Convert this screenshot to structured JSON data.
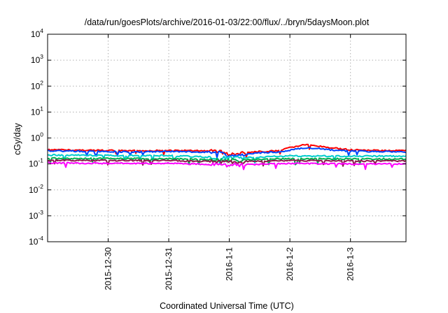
{
  "chart_data": {
    "type": "line",
    "title": "/data/run/goesPlots/archive/2016-01-03/22:00/flux/../bryn/5daysMoon.plot",
    "xlabel": "Coordinated Universal Time (UTC)",
    "ylabel": "cGy/day",
    "yscale": "log",
    "ylim": [
      0.0001,
      10000
    ],
    "y_ticks": [
      {
        "base": "10",
        "exp": "4",
        "value": 10000
      },
      {
        "base": "10",
        "exp": "3",
        "value": 1000
      },
      {
        "base": "10",
        "exp": "2",
        "value": 100
      },
      {
        "base": "10",
        "exp": "1",
        "value": 10
      },
      {
        "base": "10",
        "exp": "0",
        "value": 1
      },
      {
        "base": "10",
        "exp": "-1",
        "value": 0.1
      },
      {
        "base": "10",
        "exp": "-2",
        "value": 0.01
      },
      {
        "base": "10",
        "exp": "-3",
        "value": 0.001
      },
      {
        "base": "10",
        "exp": "-4",
        "value": 0.0001
      }
    ],
    "xlim": [
      "2015-12-29 00:00",
      "2016-01-03 22:00"
    ],
    "x_ticks": [
      {
        "label": "2015-12-30",
        "date": "2015-12-30"
      },
      {
        "label": "2015-12-31",
        "date": "2015-12-31"
      },
      {
        "label": "2016-1-1",
        "date": "2016-01-01"
      },
      {
        "label": "2016-1-2",
        "date": "2016-01-02"
      },
      {
        "label": "2016-1-3",
        "date": "2016-01-03"
      }
    ],
    "grid": true,
    "legend": "none",
    "series": [
      {
        "color": "#ff0000",
        "points": [
          [
            "2015-12-29 00:00",
            0.35
          ],
          [
            "2015-12-29 12:00",
            0.34
          ],
          [
            "2015-12-30 00:00",
            0.33
          ],
          [
            "2015-12-30 12:00",
            0.32
          ],
          [
            "2015-12-31 00:00",
            0.33
          ],
          [
            "2015-12-31 12:00",
            0.32
          ],
          [
            "2015-12-31 20:00",
            0.31
          ],
          [
            "2016-01-01 00:00",
            0.22
          ],
          [
            "2016-01-01 06:00",
            0.26
          ],
          [
            "2016-01-01 12:00",
            0.3
          ],
          [
            "2016-01-01 20:00",
            0.32
          ],
          [
            "2016-01-02 00:00",
            0.42
          ],
          [
            "2016-01-02 06:00",
            0.55
          ],
          [
            "2016-01-02 10:00",
            0.5
          ],
          [
            "2016-01-02 16:00",
            0.42
          ],
          [
            "2016-01-03 00:00",
            0.35
          ],
          [
            "2016-01-03 12:00",
            0.33
          ],
          [
            "2016-01-03 22:00",
            0.32
          ]
        ]
      },
      {
        "color": "#0044ff",
        "points": [
          [
            "2015-12-29 00:00",
            0.32
          ],
          [
            "2015-12-29 12:00",
            0.31
          ],
          [
            "2015-12-30 00:00",
            0.3
          ],
          [
            "2015-12-30 12:00",
            0.29
          ],
          [
            "2015-12-31 00:00",
            0.3
          ],
          [
            "2015-12-31 12:00",
            0.29
          ],
          [
            "2015-12-31 20:00",
            0.28
          ],
          [
            "2016-01-01 00:00",
            0.18
          ],
          [
            "2016-01-01 06:00",
            0.22
          ],
          [
            "2016-01-01 12:00",
            0.27
          ],
          [
            "2016-01-01 20:00",
            0.29
          ],
          [
            "2016-01-02 00:00",
            0.34
          ],
          [
            "2016-01-02 06:00",
            0.42
          ],
          [
            "2016-01-02 10:00",
            0.4
          ],
          [
            "2016-01-02 16:00",
            0.35
          ],
          [
            "2016-01-03 00:00",
            0.31
          ],
          [
            "2016-01-03 12:00",
            0.3
          ],
          [
            "2016-01-03 22:00",
            0.29
          ]
        ]
      },
      {
        "color": "#00cccc",
        "points": [
          [
            "2015-12-29 00:00",
            0.22
          ],
          [
            "2015-12-30 00:00",
            0.21
          ],
          [
            "2015-12-31 00:00",
            0.21
          ],
          [
            "2016-01-01 00:00",
            0.17
          ],
          [
            "2016-01-02 00:00",
            0.2
          ],
          [
            "2016-01-03 00:00",
            0.2
          ],
          [
            "2016-01-03 22:00",
            0.2
          ]
        ]
      },
      {
        "color": "#00b050",
        "points": [
          [
            "2015-12-29 00:00",
            0.165
          ],
          [
            "2015-12-30 00:00",
            0.16
          ],
          [
            "2015-12-31 00:00",
            0.16
          ],
          [
            "2016-01-01 00:00",
            0.14
          ],
          [
            "2016-01-02 00:00",
            0.16
          ],
          [
            "2016-01-03 00:00",
            0.155
          ],
          [
            "2016-01-03 22:00",
            0.155
          ]
        ]
      },
      {
        "color": "#8b1a4a",
        "points": [
          [
            "2015-12-29 00:00",
            0.14
          ],
          [
            "2015-12-30 00:00",
            0.135
          ],
          [
            "2015-12-31 00:00",
            0.135
          ],
          [
            "2016-01-01 00:00",
            0.12
          ],
          [
            "2016-01-02 00:00",
            0.135
          ],
          [
            "2016-01-03 00:00",
            0.13
          ],
          [
            "2016-01-03 22:00",
            0.13
          ]
        ]
      },
      {
        "color": "#ff00ff",
        "points": [
          [
            "2015-12-29 00:00",
            0.11
          ],
          [
            "2015-12-30 00:00",
            0.105
          ],
          [
            "2015-12-31 00:00",
            0.105
          ],
          [
            "2016-01-01 00:00",
            0.09
          ],
          [
            "2016-01-02 00:00",
            0.105
          ],
          [
            "2016-01-03 00:00",
            0.1
          ],
          [
            "2016-01-03 22:00",
            0.1
          ]
        ]
      }
    ]
  }
}
